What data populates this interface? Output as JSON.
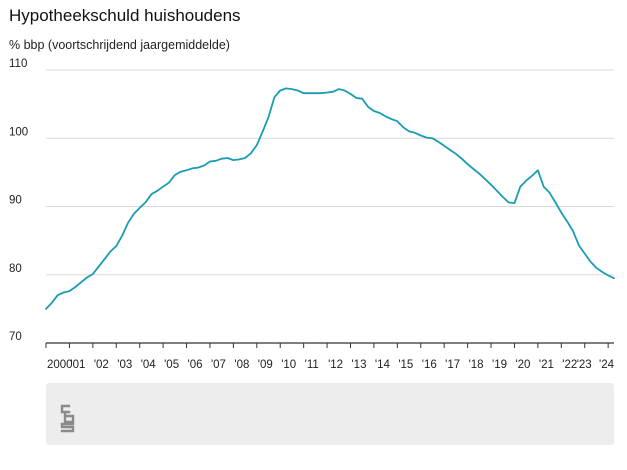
{
  "chart_data": {
    "type": "line",
    "title": "Hypotheekschuld huishoudens",
    "subtitle": "% bbp (voortschrijdend jaargemiddelde)",
    "xlabel": "",
    "ylabel": "",
    "ylim": [
      70,
      110
    ],
    "xlim": [
      2000.0,
      2024.25
    ],
    "y_ticks": [
      {
        "value": 70,
        "label": "70"
      },
      {
        "value": 80,
        "label": "80"
      },
      {
        "value": 90,
        "label": "90"
      },
      {
        "value": 100,
        "label": "100"
      },
      {
        "value": 110,
        "label": "110"
      }
    ],
    "x_ticks": [
      {
        "value": 2000,
        "label": "2000"
      },
      {
        "value": 2001,
        "label": "'01"
      },
      {
        "value": 2002,
        "label": "'02"
      },
      {
        "value": 2003,
        "label": "'03"
      },
      {
        "value": 2004,
        "label": "'04"
      },
      {
        "value": 2005,
        "label": "'05"
      },
      {
        "value": 2006,
        "label": "'06"
      },
      {
        "value": 2007,
        "label": "'07"
      },
      {
        "value": 2008,
        "label": "'08"
      },
      {
        "value": 2009,
        "label": "'09"
      },
      {
        "value": 2010,
        "label": "'10"
      },
      {
        "value": 2011,
        "label": "'11"
      },
      {
        "value": 2012,
        "label": "'12"
      },
      {
        "value": 2013,
        "label": "'13"
      },
      {
        "value": 2014,
        "label": "'14"
      },
      {
        "value": 2015,
        "label": "'15"
      },
      {
        "value": 2016,
        "label": "'16"
      },
      {
        "value": 2017,
        "label": "'17"
      },
      {
        "value": 2018,
        "label": "'18"
      },
      {
        "value": 2019,
        "label": "'19"
      },
      {
        "value": 2020,
        "label": "'20"
      },
      {
        "value": 2021,
        "label": "'21"
      },
      {
        "value": 2022,
        "label": "'22"
      },
      {
        "value": 2023,
        "label": "'23"
      },
      {
        "value": 2024,
        "label": "'24"
      }
    ],
    "grid": true,
    "series": [
      {
        "color": "#1a9cb3",
        "x": [
          2000.0,
          2000.25,
          2000.5,
          2000.75,
          2001.0,
          2001.25,
          2001.5,
          2001.75,
          2002.0,
          2002.25,
          2002.5,
          2002.75,
          2003.0,
          2003.25,
          2003.5,
          2003.75,
          2004.0,
          2004.25,
          2004.5,
          2004.75,
          2005.0,
          2005.25,
          2005.5,
          2005.75,
          2006.0,
          2006.25,
          2006.5,
          2006.75,
          2007.0,
          2007.25,
          2007.5,
          2007.75,
          2008.0,
          2008.25,
          2008.5,
          2008.75,
          2009.0,
          2009.25,
          2009.5,
          2009.75,
          2010.0,
          2010.25,
          2010.5,
          2010.75,
          2011.0,
          2011.25,
          2011.5,
          2011.75,
          2012.0,
          2012.25,
          2012.5,
          2012.75,
          2013.0,
          2013.25,
          2013.5,
          2013.75,
          2014.0,
          2014.25,
          2014.5,
          2014.75,
          2015.0,
          2015.25,
          2015.5,
          2015.75,
          2016.0,
          2016.25,
          2016.5,
          2016.75,
          2017.0,
          2017.25,
          2017.5,
          2017.75,
          2018.0,
          2018.25,
          2018.5,
          2018.75,
          2019.0,
          2019.25,
          2019.5,
          2019.75,
          2020.0,
          2020.25,
          2020.5,
          2020.75,
          2021.0,
          2021.25,
          2021.5,
          2021.75,
          2022.0,
          2022.25,
          2022.5,
          2022.75,
          2023.0,
          2023.25,
          2023.5,
          2023.75,
          2024.0,
          2024.25
        ],
        "values": [
          75.0,
          75.9,
          77.0,
          77.4,
          77.6,
          78.2,
          78.9,
          79.6,
          80.1,
          81.2,
          82.3,
          83.4,
          84.2,
          85.7,
          87.6,
          88.9,
          89.8,
          90.6,
          91.8,
          92.3,
          92.9,
          93.5,
          94.6,
          95.1,
          95.3,
          95.6,
          95.7,
          96.0,
          96.6,
          96.7,
          97.0,
          97.1,
          96.8,
          96.9,
          97.1,
          97.8,
          99.0,
          101.0,
          103.1,
          106.0,
          107.0,
          107.3,
          107.2,
          107.0,
          106.6,
          106.6,
          106.6,
          106.6,
          106.7,
          106.8,
          107.2,
          107.0,
          106.5,
          105.9,
          105.8,
          104.6,
          104.0,
          103.7,
          103.2,
          102.8,
          102.5,
          101.6,
          101.0,
          100.8,
          100.4,
          100.1,
          100.0,
          99.5,
          98.9,
          98.3,
          97.7,
          97.0,
          96.2,
          95.5,
          94.8,
          94.0,
          93.2,
          92.3,
          91.4,
          90.6,
          90.5,
          92.9,
          93.8,
          94.5,
          95.3,
          92.9,
          92.0,
          90.6,
          89.1,
          87.8,
          86.4,
          84.3,
          83.1,
          81.9,
          81.0,
          80.4,
          79.9,
          79.5
        ]
      }
    ]
  }
}
